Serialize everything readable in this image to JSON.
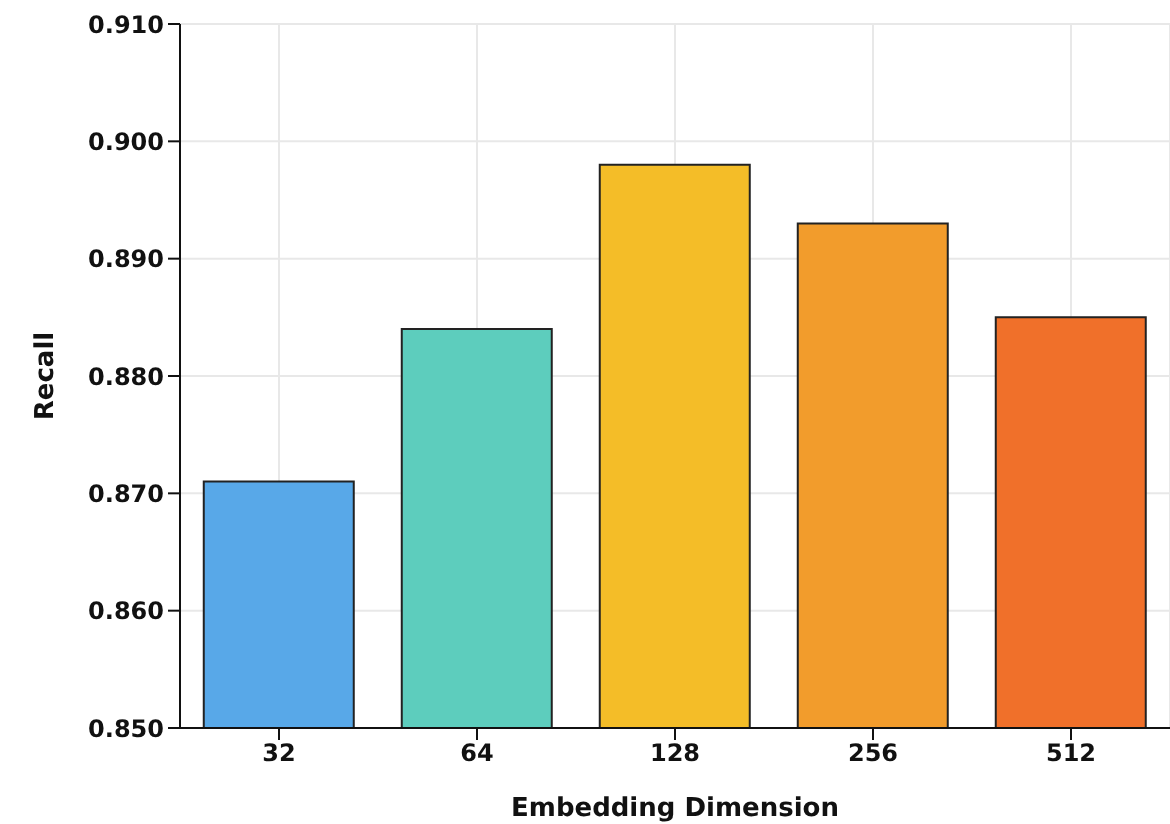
{
  "chart_data": {
    "type": "bar",
    "xlabel": "Embedding Dimension",
    "ylabel": "Recall",
    "categories": [
      "32",
      "64",
      "128",
      "256",
      "512"
    ],
    "values": [
      0.871,
      0.884,
      0.898,
      0.893,
      0.885
    ],
    "colors": [
      "#58a8e8",
      "#5dcdbd",
      "#f4bd28",
      "#f29c2c",
      "#f0702a"
    ],
    "ylim": [
      0.85,
      0.91
    ],
    "yticks": [
      {
        "value": 0.85,
        "label": "0.850"
      },
      {
        "value": 0.86,
        "label": "0.860"
      },
      {
        "value": 0.87,
        "label": "0.870"
      },
      {
        "value": 0.88,
        "label": "0.880"
      },
      {
        "value": 0.89,
        "label": "0.890"
      },
      {
        "value": 0.9,
        "label": "0.900"
      },
      {
        "value": 0.91,
        "label": "0.910"
      }
    ],
    "grid": true
  }
}
